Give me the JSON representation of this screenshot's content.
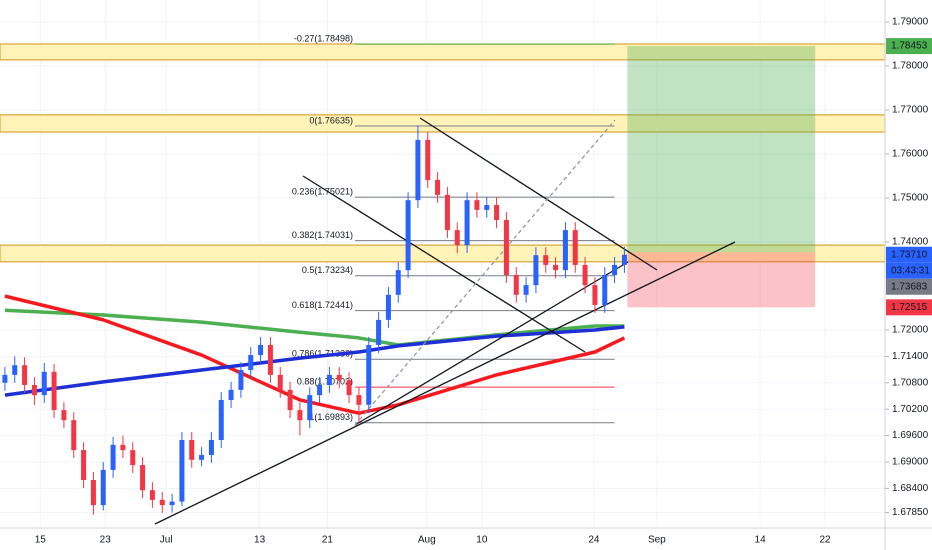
{
  "chart_data": {
    "type": "candlestick",
    "xlim": [
      -0.5,
      89.5
    ],
    "ylim": [
      1.675,
      1.795
    ],
    "yticks": [
      {
        "value": 1.79,
        "label": "1.79000"
      },
      {
        "value": 1.78,
        "label": "1.78000"
      },
      {
        "value": 1.77,
        "label": "1.77000"
      },
      {
        "value": 1.76,
        "label": "1.76000"
      },
      {
        "value": 1.75,
        "label": "1.75000"
      },
      {
        "value": 1.74,
        "label": "1.74000"
      },
      {
        "value": 1.72,
        "label": "1.72000"
      },
      {
        "value": 1.714,
        "label": "1.71400"
      },
      {
        "value": 1.708,
        "label": "1.70800"
      },
      {
        "value": 1.702,
        "label": "1.70200"
      },
      {
        "value": 1.696,
        "label": "1.69600"
      },
      {
        "value": 1.69,
        "label": "1.69000"
      },
      {
        "value": 1.684,
        "label": "1.68400"
      },
      {
        "value": 1.6785,
        "label": "1.67850"
      }
    ],
    "xticks": [
      {
        "value": 3.6,
        "label": "15"
      },
      {
        "value": 10.2,
        "label": "23"
      },
      {
        "value": 16.4,
        "label": "Jul"
      },
      {
        "value": 25.9,
        "label": "13"
      },
      {
        "value": 32.8,
        "label": "21"
      },
      {
        "value": 42.9,
        "label": "Aug"
      },
      {
        "value": 48.5,
        "label": "10"
      },
      {
        "value": 59.9,
        "label": "24"
      },
      {
        "value": 66.3,
        "label": "Sep"
      },
      {
        "value": 76.8,
        "label": "14"
      },
      {
        "value": 83.4,
        "label": "22"
      }
    ],
    "grid": true,
    "up_color": "#2962ff",
    "down_color": "#f23645",
    "candles": {
      "open": [
        1.708,
        1.7098,
        1.712,
        1.7075,
        1.7052,
        1.7105,
        1.7018,
        1.6995,
        1.6927,
        1.6859,
        1.6802,
        1.6882,
        1.6939,
        1.6927,
        1.6893,
        1.6836,
        1.6814,
        1.6802,
        1.681,
        1.695,
        1.6905,
        1.6916,
        1.695,
        1.7041,
        1.7064,
        1.7109,
        1.7143,
        1.7166,
        1.7098,
        1.7064,
        1.7018,
        1.6995,
        1.7052,
        1.7075,
        1.7098,
        1.7086,
        1.7052,
        1.703,
        1.7166,
        1.7223,
        1.728,
        1.7336,
        1.7495,
        1.7632,
        1.7541,
        1.7507,
        1.7427,
        1.7393,
        1.7495,
        1.7473,
        1.7484,
        1.745,
        1.7325,
        1.728,
        1.7302,
        1.737,
        1.7348,
        1.7336,
        1.7427,
        1.7348,
        1.7302,
        1.7257,
        1.7325,
        1.7348
      ],
      "high": [
        1.7116,
        1.714,
        1.7138,
        1.7093,
        1.7125,
        1.7123,
        1.7036,
        1.7013,
        1.6945,
        1.6877,
        1.69,
        1.6957,
        1.696,
        1.6945,
        1.6911,
        1.6854,
        1.6832,
        1.6828,
        1.6968,
        1.6968,
        1.6934,
        1.6968,
        1.7059,
        1.7082,
        1.7127,
        1.7161,
        1.7184,
        1.7184,
        1.7116,
        1.7082,
        1.7036,
        1.707,
        1.7093,
        1.7116,
        1.7116,
        1.7104,
        1.707,
        1.7184,
        1.7241,
        1.7298,
        1.7354,
        1.7513,
        1.7665,
        1.765,
        1.7559,
        1.7525,
        1.7445,
        1.7513,
        1.7513,
        1.7502,
        1.7502,
        1.7468,
        1.7343,
        1.732,
        1.7388,
        1.7388,
        1.7366,
        1.7445,
        1.7445,
        1.7366,
        1.732,
        1.7343,
        1.7366,
        1.7389
      ],
      "low": [
        1.7062,
        1.708,
        1.7057,
        1.703,
        1.7034,
        1.7,
        1.6977,
        1.6909,
        1.6841,
        1.678,
        1.679,
        1.6864,
        1.6909,
        1.6875,
        1.6818,
        1.6796,
        1.6784,
        1.6785,
        1.68,
        1.6887,
        1.689,
        1.6898,
        1.6932,
        1.7023,
        1.7046,
        1.7091,
        1.7125,
        1.708,
        1.7046,
        1.7,
        1.696,
        1.6977,
        1.7034,
        1.7057,
        1.7068,
        1.7034,
        1.699,
        1.7012,
        1.7148,
        1.7205,
        1.7262,
        1.7318,
        1.7477,
        1.7523,
        1.7489,
        1.7409,
        1.7375,
        1.7375,
        1.7455,
        1.7455,
        1.7432,
        1.7307,
        1.7262,
        1.7262,
        1.7284,
        1.733,
        1.7318,
        1.7318,
        1.733,
        1.7284,
        1.7239,
        1.7239,
        1.7307,
        1.733
      ],
      "close": [
        1.7098,
        1.712,
        1.7075,
        1.7052,
        1.7105,
        1.7018,
        1.6995,
        1.6927,
        1.6859,
        1.6802,
        1.6882,
        1.6939,
        1.6927,
        1.6893,
        1.6836,
        1.6814,
        1.6802,
        1.681,
        1.695,
        1.6905,
        1.6916,
        1.695,
        1.7041,
        1.7064,
        1.7109,
        1.7143,
        1.7166,
        1.7098,
        1.7064,
        1.7018,
        1.6995,
        1.7052,
        1.7075,
        1.7098,
        1.7086,
        1.7052,
        1.703,
        1.7166,
        1.7223,
        1.728,
        1.7336,
        1.7495,
        1.7632,
        1.7541,
        1.7507,
        1.7427,
        1.7393,
        1.7495,
        1.7473,
        1.7484,
        1.745,
        1.7325,
        1.728,
        1.7302,
        1.737,
        1.7348,
        1.7336,
        1.7427,
        1.7348,
        1.7302,
        1.7257,
        1.7325,
        1.7348,
        1.7371
      ]
    },
    "moving_averages": {
      "x": [
        0,
        10,
        20,
        30,
        36,
        40,
        50,
        60,
        63
      ],
      "series": [
        {
          "color": "#4caf50",
          "values": [
            1.7245,
            1.7234,
            1.7218,
            1.7195,
            1.7182,
            1.7166,
            1.7189,
            1.7209,
            1.7209
          ]
        },
        {
          "color": "#f7191f",
          "values": [
            1.7277,
            1.7223,
            1.7143,
            1.7041,
            1.7011,
            1.703,
            1.7098,
            1.715,
            1.7182
          ]
        },
        {
          "color": "#1e2fd6",
          "values": [
            1.7052,
            1.7082,
            1.7109,
            1.7136,
            1.715,
            1.7164,
            1.7186,
            1.72,
            1.7207
          ]
        }
      ]
    },
    "zones": [
      {
        "top": 1.785,
        "bottom": 1.7814
      },
      {
        "top": 1.7689,
        "bottom": 1.765
      },
      {
        "top": 1.7393,
        "bottom": 1.7355
      }
    ],
    "position": {
      "x_range": [
        63.3,
        82.4
      ],
      "target": 1.78453,
      "entry": 1.7377,
      "stop": 1.72515
    },
    "fib": {
      "x_range": [
        35.6,
        62.0
      ],
      "levels": [
        {
          "label": "-0.27(1.78498)",
          "value": 1.78498,
          "color": "#4caf50"
        },
        {
          "label": "0(1.76635)",
          "value": 1.76635,
          "color": "#787b86"
        },
        {
          "label": "0.236(1.75021)",
          "value": 1.75021,
          "color": "#787b86"
        },
        {
          "label": "0.382(1.74031)",
          "value": 1.74031,
          "color": "#787b86"
        },
        {
          "label": "0.5(1.73234)",
          "value": 1.73234,
          "color": "#787b86"
        },
        {
          "label": "0.618(1.72441)",
          "value": 1.72441,
          "color": "#787b86"
        },
        {
          "label": "0.786(1.71336)",
          "value": 1.71336,
          "color": "#787b86"
        },
        {
          "label": "0.88(1.70702)",
          "value": 1.70702,
          "color": "#f23645"
        },
        {
          "label": "1(1.69893)",
          "value": 1.69893,
          "color": "#787b86"
        }
      ]
    },
    "price_labels": [
      {
        "label": "1.78453",
        "value": 1.78453,
        "color": "#4caf50"
      },
      {
        "label": "1.73710",
        "value": 1.7371,
        "color": "#2962ff",
        "countdown": "03:43:31"
      },
      {
        "label": "1.73683",
        "value": 1.73683,
        "color": "#787b86"
      },
      {
        "label": "1.72515",
        "value": 1.72515,
        "color": "#f23645"
      }
    ]
  }
}
